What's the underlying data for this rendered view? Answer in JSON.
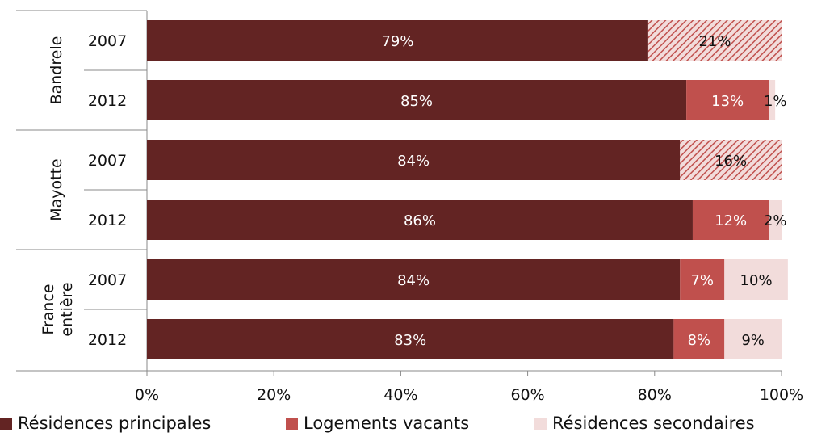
{
  "chart_data": {
    "type": "bar",
    "orientation": "horizontal",
    "stacked": true,
    "groups": [
      {
        "label": "Bandrele",
        "rows": [
          {
            "year": "2007",
            "values": [
              79,
              21,
              null
            ],
            "labels": [
              "79%",
              "21%",
              ""
            ],
            "combined_vacants_secondaires": true
          },
          {
            "year": "2012",
            "values": [
              85,
              13,
              1
            ],
            "labels": [
              "85%",
              "13%",
              "1%"
            ],
            "combined_vacants_secondaires": false
          }
        ]
      },
      {
        "label": "Mayotte",
        "rows": [
          {
            "year": "2007",
            "values": [
              84,
              16,
              null
            ],
            "labels": [
              "84%",
              "16%",
              ""
            ],
            "combined_vacants_secondaires": true
          },
          {
            "year": "2012",
            "values": [
              86,
              12,
              2
            ],
            "labels": [
              "86%",
              "12%",
              "2%"
            ],
            "combined_vacants_secondaires": false
          }
        ]
      },
      {
        "label": "France entière",
        "label_lines": [
          "France",
          "entière"
        ],
        "rows": [
          {
            "year": "2007",
            "values": [
              84,
              7,
              10
            ],
            "labels": [
              "84%",
              "7%",
              "10%"
            ],
            "combined_vacants_secondaires": false
          },
          {
            "year": "2012",
            "values": [
              83,
              8,
              9
            ],
            "labels": [
              "83%",
              "8%",
              "9%"
            ],
            "combined_vacants_secondaires": false
          }
        ]
      }
    ],
    "series": [
      {
        "name": "Résidences principales",
        "color": "#632423"
      },
      {
        "name": "Logements vacants",
        "color": "#c0504d"
      },
      {
        "name": "Résidences secondaires",
        "color": "#f2dcdb"
      }
    ],
    "xlim": [
      0,
      100
    ],
    "xticks": [
      "0%",
      "20%",
      "40%",
      "60%",
      "80%",
      "100%"
    ],
    "legend_position": "bottom",
    "grid": false
  }
}
